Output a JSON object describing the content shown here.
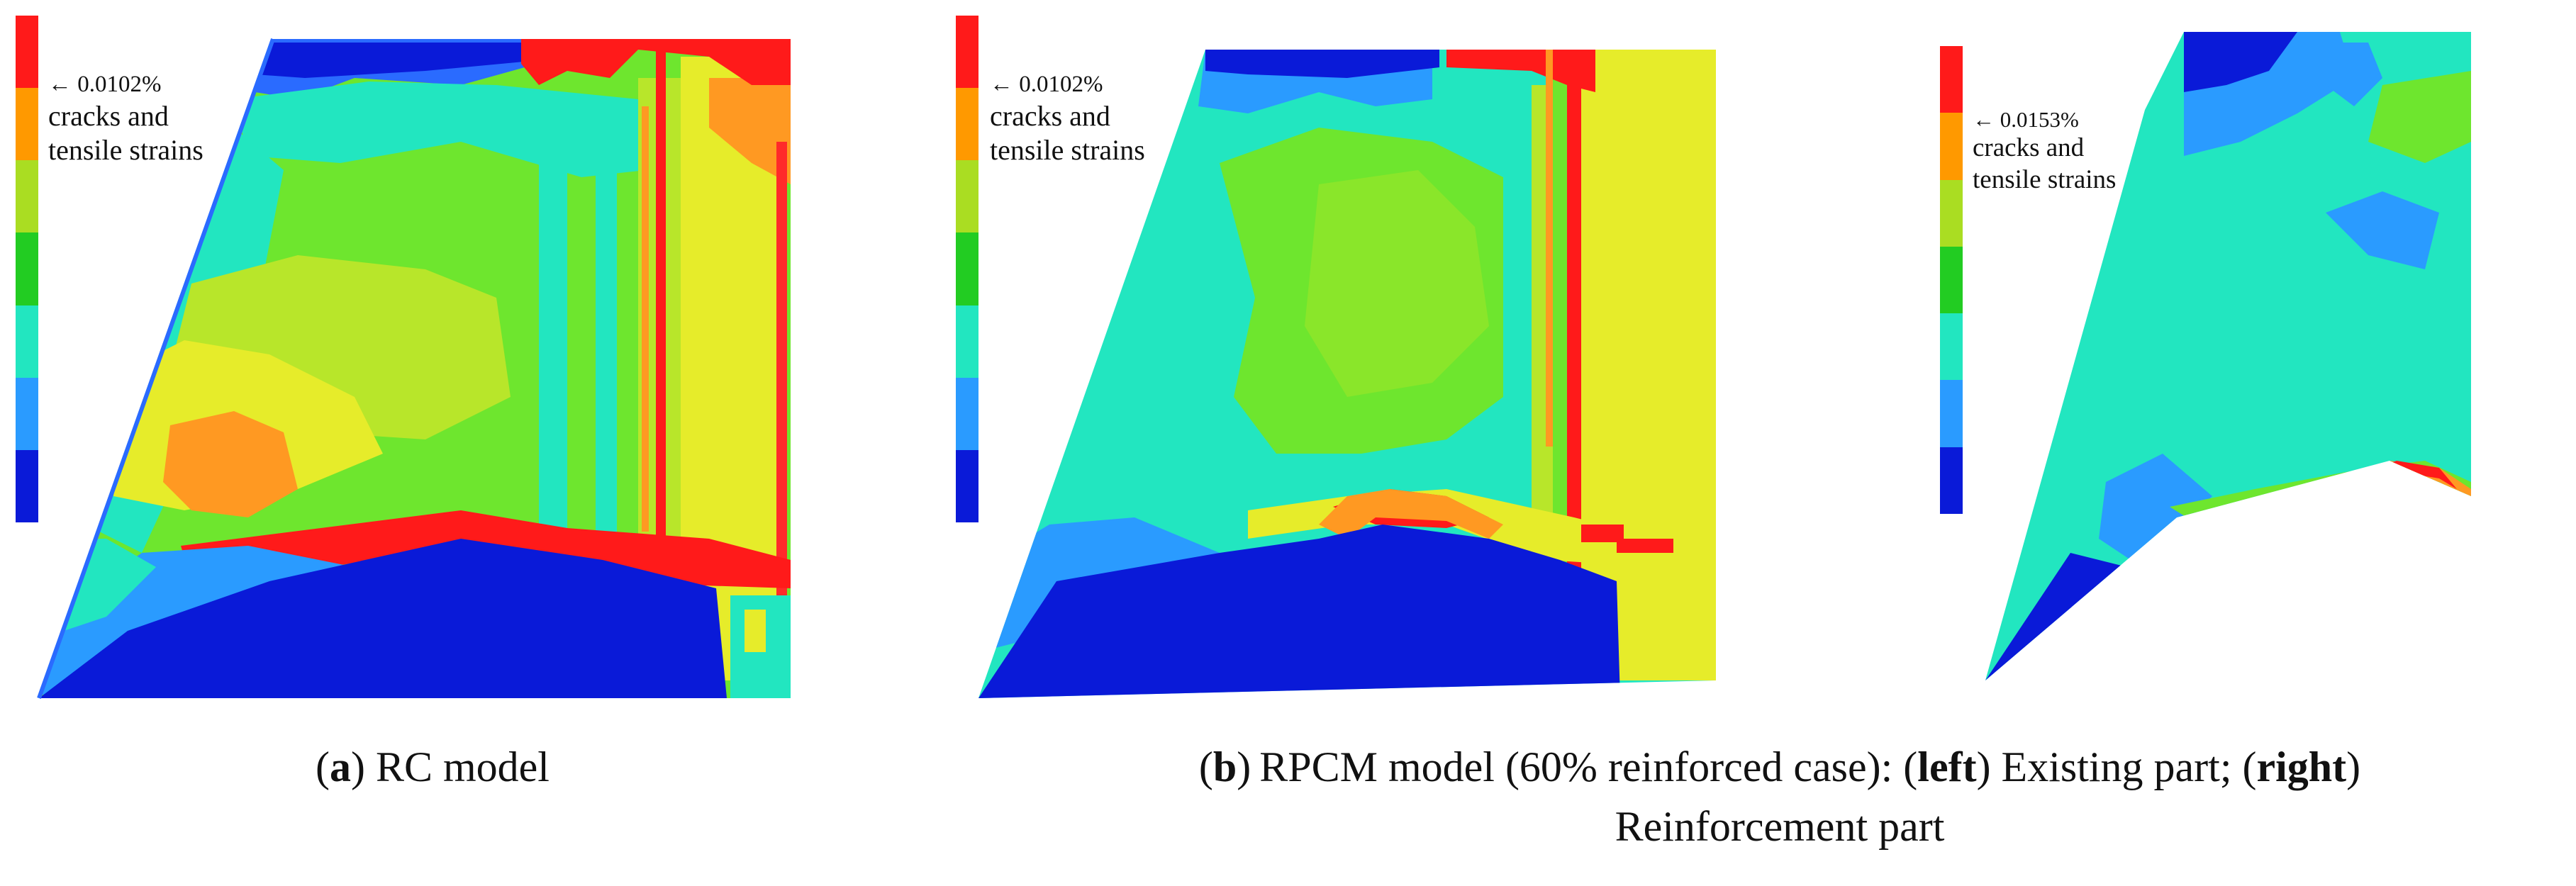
{
  "legend_colors": [
    "#ff1a1a",
    "#ff9900",
    "#aadd22",
    "#22cc22",
    "#22e6c0",
    "#2a9bff",
    "#0a1ad8"
  ],
  "panel_a": {
    "annotation_value": "0.0102%",
    "annotation_text_1": "cracks and",
    "annotation_text_2": "tensile strains"
  },
  "panel_b_left": {
    "annotation_value": "0.0102%",
    "annotation_text_1": "cracks and",
    "annotation_text_2": "tensile strains"
  },
  "panel_b_right": {
    "annotation_value": "0.0153%",
    "annotation_text_1": "cracks and",
    "annotation_text_2": "tensile strains"
  },
  "caption_a": {
    "letter": "a",
    "text": "RC model"
  },
  "caption_b": {
    "letter": "b",
    "text_1": "RPCM model (60% reinforced case): (",
    "left_word": "left",
    "text_2": ") Existing part; (",
    "right_word": "right",
    "text_3": ")",
    "line2": "Reinforcement part"
  }
}
